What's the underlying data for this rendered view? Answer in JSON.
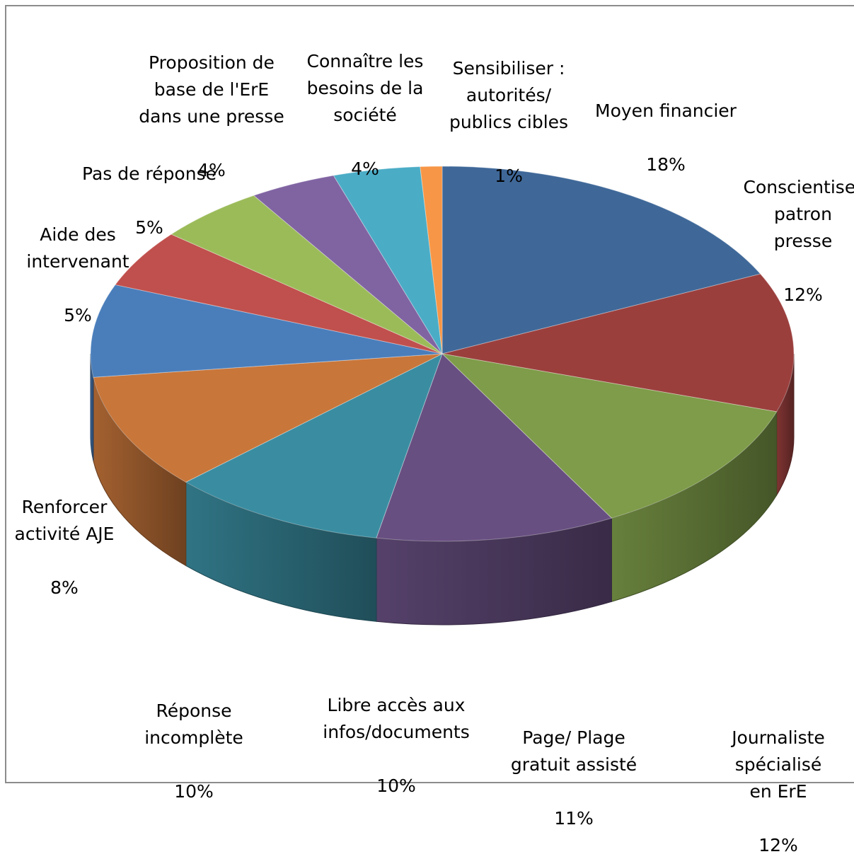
{
  "chart_data": {
    "type": "pie",
    "title": "",
    "style": "3d-exploded-perspective",
    "slices": [
      {
        "label": "Moyen financier",
        "value": 18,
        "display": "18%",
        "color": "#3F6898"
      },
      {
        "label": "Conscientiser\npatron presse",
        "value": 12,
        "display": "12%",
        "color": "#9B3F3D"
      },
      {
        "label": "Journaliste\nspécialisé en ErE",
        "value": 12,
        "display": "12%",
        "color": "#7E9C49"
      },
      {
        "label": "Page/ Plage\ngratuit assisté",
        "value": 11,
        "display": "11%",
        "color": "#684F81"
      },
      {
        "label": "Libre accès aux\ninfos/documents",
        "value": 10,
        "display": "10%",
        "color": "#3A8DA1"
      },
      {
        "label": "Réponse\nincomplète",
        "value": 10,
        "display": "10%",
        "color": "#C8763A"
      },
      {
        "label": "Renforcer\nactivité AJE",
        "value": 8,
        "display": "8%",
        "color": "#4A7EBB"
      },
      {
        "label": "Aide des\nintervenant",
        "value": 5,
        "display": "5%",
        "color": "#C0504D"
      },
      {
        "label": "Pas de réponse",
        "value": 5,
        "display": "5%",
        "color": "#9BBB59"
      },
      {
        "label": "Proposition de\nbase de l'ErE\ndans une presse",
        "value": 4,
        "display": "4%",
        "color": "#8064A2"
      },
      {
        "label": "Connaître les\nbesoins de la\nsociété",
        "value": 4,
        "display": "4%",
        "color": "#4BACC6"
      },
      {
        "label": "Sensibiliser :\nautorités/\npublics cibles",
        "value": 1,
        "display": "1%",
        "color": "#F79646"
      }
    ]
  }
}
